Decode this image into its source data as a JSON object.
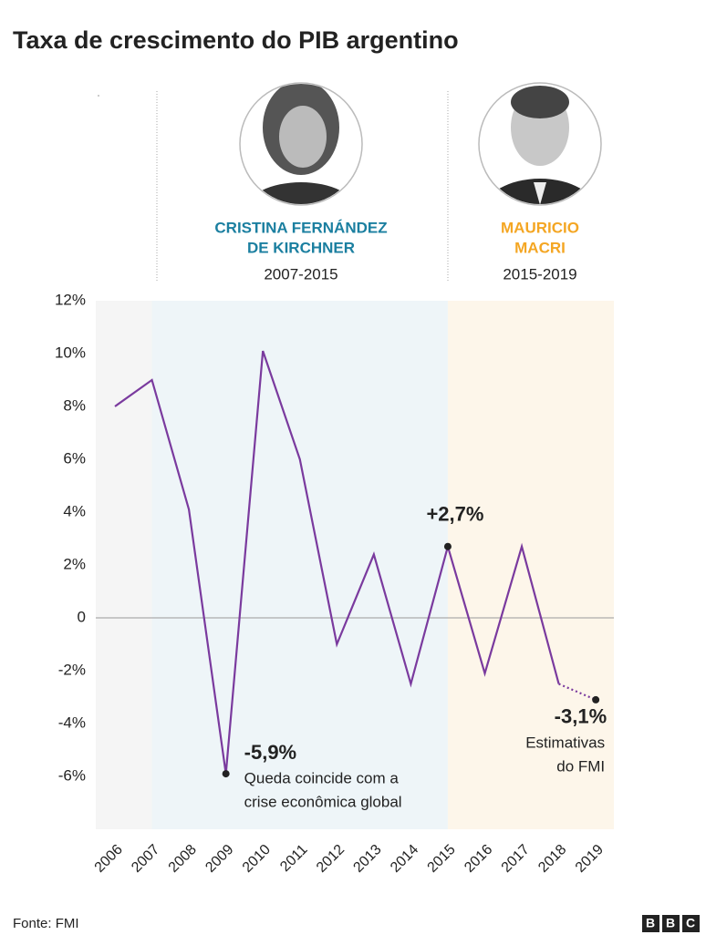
{
  "chart_data": {
    "type": "line",
    "title": "Taxa de crescimento do PIB argentino",
    "categories": [
      "2006",
      "2007",
      "2008",
      "2009",
      "2010",
      "2011",
      "2012",
      "2013",
      "2014",
      "2015",
      "2016",
      "2017",
      "2018",
      "2019"
    ],
    "values": [
      8.0,
      9.0,
      4.1,
      -5.9,
      10.1,
      6.0,
      -1.0,
      2.4,
      -2.5,
      2.7,
      -2.1,
      2.7,
      -2.5,
      -3.1
    ],
    "value_labels": [
      null,
      null,
      null,
      "-5,9%",
      null,
      null,
      null,
      null,
      null,
      "+2,7%",
      null,
      null,
      null,
      "-3,1%"
    ],
    "color": "#7a3a9e",
    "ylim": [
      -8,
      12
    ],
    "yticks": [
      {
        "value": -6,
        "label": "-6%"
      },
      {
        "value": -4,
        "label": "-4%"
      },
      {
        "value": -2,
        "label": "-2%"
      },
      0,
      {
        "value": 2,
        "label": "2%"
      },
      {
        "value": 4,
        "label": "4%"
      },
      {
        "value": 6,
        "label": "6%"
      },
      {
        "value": 8,
        "label": "8%"
      },
      {
        "value": 10,
        "label": "10%"
      },
      {
        "value": 12,
        "label": "12%"
      }
    ],
    "annotations": [
      [
        "Queda coincide com a",
        "crise econômica global"
      ],
      [
        "Estimativas",
        "do FMI"
      ]
    ],
    "periods": [
      {
        "name": [
          "CRISTINA FERNÁNDEZ",
          "DE KIRCHNER"
        ],
        "years": "2007-2015",
        "color": "#1b7fa0",
        "shade": "#eef5f8"
      },
      {
        "name": [
          "MAURICIO",
          "MACRI"
        ],
        "years": "2015-2019",
        "color": "#f4a623",
        "shade": "#fdf6ea"
      }
    ],
    "source": "Fonte: FMI",
    "logo": "BBC"
  }
}
